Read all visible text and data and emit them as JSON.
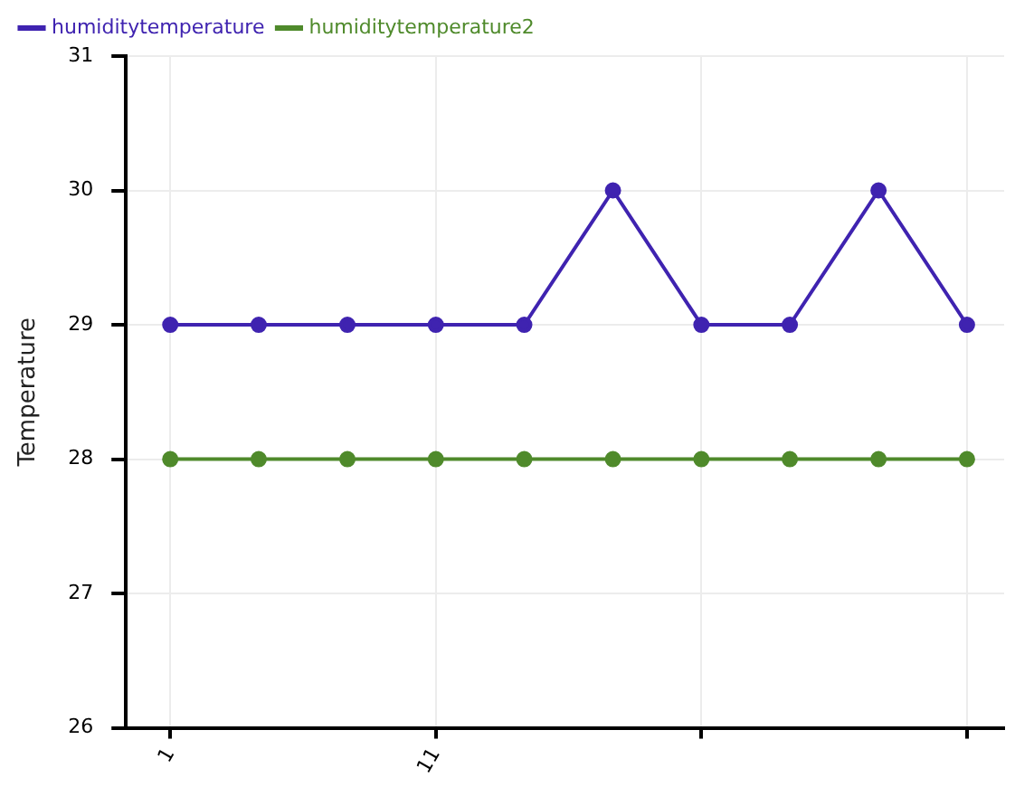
{
  "chart_data": {
    "type": "line",
    "ylabel": "Temperature",
    "legend": "top left",
    "grid": true,
    "marker": "circle",
    "line_style": "solid",
    "xlim": [
      -0.67,
      32.4
    ],
    "xticks": [
      1,
      11,
      {
        "value": 21,
        "label": null
      },
      {
        "value": 31,
        "label": null
      }
    ],
    "ylim": [
      26,
      31
    ],
    "yticks": [
      26,
      27,
      28,
      29,
      30,
      31
    ],
    "series": [
      {
        "name": "humiditytemperature",
        "color": "#3f23b0",
        "x": [
          1,
          4.33,
          7.67,
          11,
          14.33,
          17.67,
          21,
          24.33,
          27.67,
          31
        ],
        "values": [
          29,
          29,
          29,
          29,
          29,
          30,
          29,
          29,
          30,
          29
        ]
      },
      {
        "name": "humiditytemperature2",
        "color": "#4f8a2b",
        "x": [
          1,
          4.33,
          7.67,
          11,
          14.33,
          17.67,
          21,
          24.33,
          27.67,
          31
        ],
        "values": [
          28,
          28,
          28,
          28,
          28,
          28,
          28,
          28,
          28,
          28
        ]
      }
    ]
  }
}
